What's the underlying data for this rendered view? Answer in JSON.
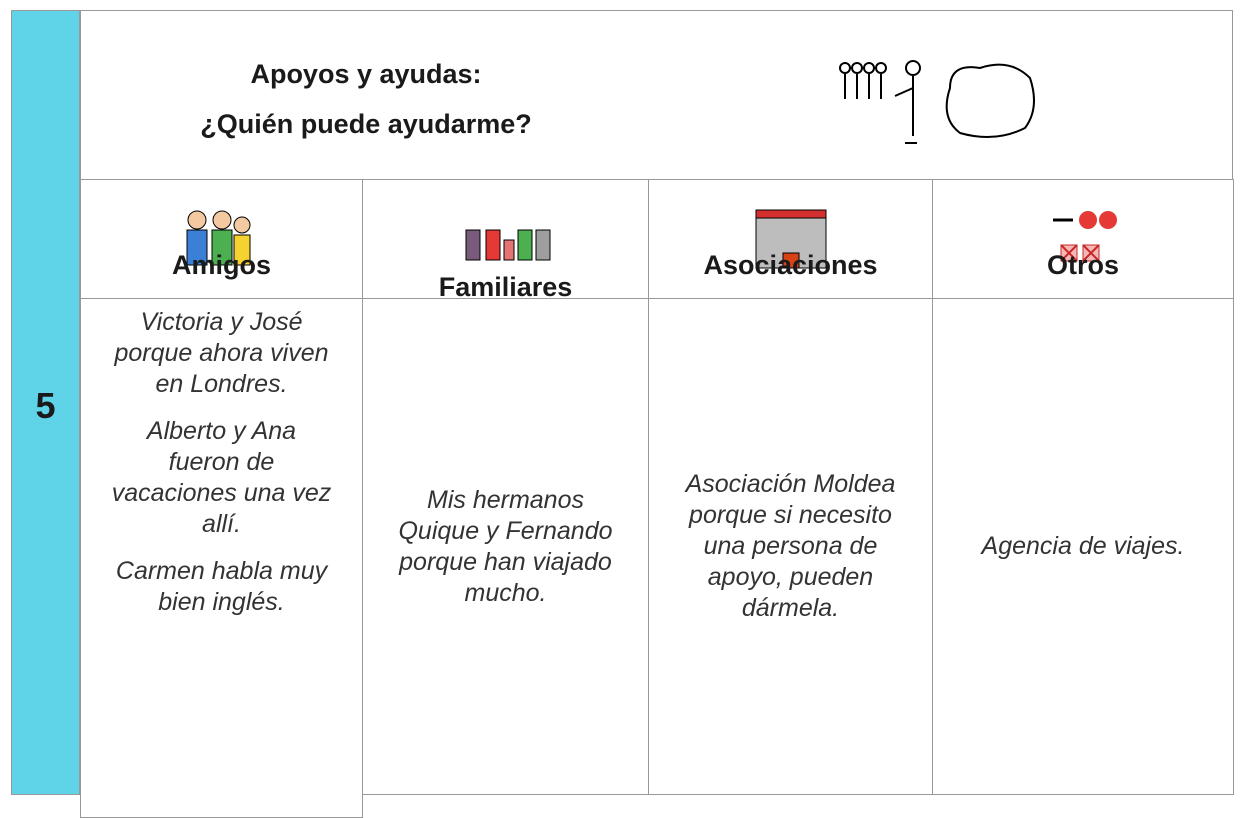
{
  "section_number": "5",
  "header": {
    "title_lines": [
      "Apoyos y ayudas:",
      "¿Quién puede ayudarme?"
    ]
  },
  "columns": [
    {
      "label": "Amigos",
      "paragraphs": [
        [
          "Victoria y José",
          "porque ahora viven",
          "en Londres."
        ],
        [
          "Alberto y Ana",
          "fueron de",
          "vacaciones una vez",
          "allí."
        ],
        [
          "Carmen habla muy",
          "bien inglés."
        ]
      ]
    },
    {
      "label": "Familiares",
      "paragraphs": [
        [
          "Mis hermanos",
          "Quique y Fernando",
          "porque han viajado",
          "mucho."
        ]
      ]
    },
    {
      "label": "Asociaciones",
      "paragraphs": [
        [
          "Asociación Moldea",
          "porque si necesito",
          "una persona de",
          "apoyo, pueden",
          "dármela."
        ]
      ]
    },
    {
      "label": "Otros",
      "paragraphs": [
        [
          "Agencia de viajes."
        ]
      ]
    }
  ]
}
